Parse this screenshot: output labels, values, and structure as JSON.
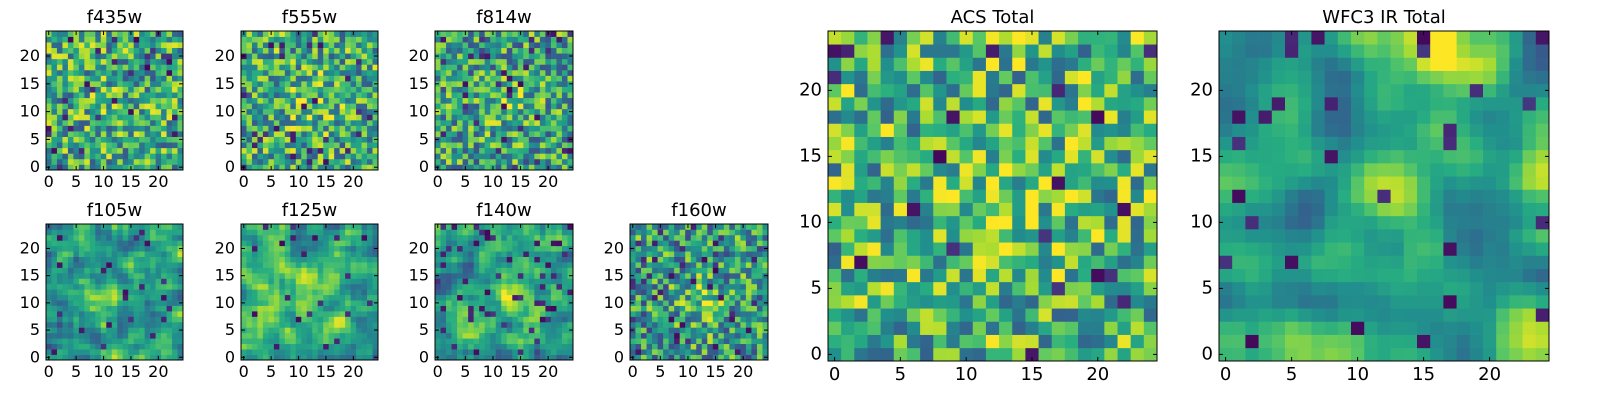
{
  "colormap": "viridis",
  "colors": {
    "low": "#440154",
    "mid_low": "#31688e",
    "mid": "#35b779",
    "high": "#fde725",
    "frame": "#000000"
  },
  "chart_data": [
    {
      "type": "heatmap",
      "title": "f435w",
      "grid_size": 25,
      "xlim": [
        0,
        24
      ],
      "ylim": [
        0,
        24
      ],
      "xticks": [
        0,
        5,
        10,
        15,
        20
      ],
      "yticks": [
        0,
        5,
        10,
        15,
        20
      ],
      "seed": 11,
      "smooth": 0,
      "base": 0.62,
      "blob": {
        "cx": 12,
        "cy": 12,
        "amp": 0.05
      },
      "dark_fraction": 0.05
    },
    {
      "type": "heatmap",
      "title": "f555w",
      "grid_size": 25,
      "xlim": [
        0,
        24
      ],
      "ylim": [
        0,
        24
      ],
      "xticks": [
        0,
        5,
        10,
        15,
        20
      ],
      "yticks": [
        0,
        5,
        10,
        15,
        20
      ],
      "seed": 23,
      "smooth": 0,
      "base": 0.62,
      "blob": {
        "cx": 12,
        "cy": 12,
        "amp": 0.15
      },
      "dark_fraction": 0.04
    },
    {
      "type": "heatmap",
      "title": "f814w",
      "grid_size": 25,
      "xlim": [
        0,
        24
      ],
      "ylim": [
        0,
        24
      ],
      "xticks": [
        0,
        5,
        10,
        15,
        20
      ],
      "yticks": [
        0,
        5,
        10,
        15,
        20
      ],
      "seed": 37,
      "smooth": 0,
      "base": 0.58,
      "blob": {
        "cx": 13,
        "cy": 11,
        "amp": 0.15
      },
      "dark_fraction": 0.06
    },
    {
      "type": "heatmap",
      "title": "f105w",
      "grid_size": 25,
      "xlim": [
        0,
        24
      ],
      "ylim": [
        0,
        24
      ],
      "xticks": [
        0,
        5,
        10,
        15,
        20
      ],
      "yticks": [
        0,
        5,
        10,
        15,
        20
      ],
      "seed": 41,
      "smooth": 1,
      "base": 0.58,
      "blob": {
        "cx": 11,
        "cy": 11,
        "amp": 0.22
      },
      "dark_fraction": 0.04
    },
    {
      "type": "heatmap",
      "title": "f125w",
      "grid_size": 25,
      "xlim": [
        0,
        24
      ],
      "ylim": [
        0,
        24
      ],
      "xticks": [
        0,
        5,
        10,
        15,
        20
      ],
      "yticks": [
        0,
        5,
        10,
        15,
        20
      ],
      "seed": 53,
      "smooth": 1,
      "base": 0.6,
      "blob": {
        "cx": 12,
        "cy": 12,
        "amp": 0.15
      },
      "dark_fraction": 0.04
    },
    {
      "type": "heatmap",
      "title": "f140w",
      "grid_size": 25,
      "xlim": [
        0,
        24
      ],
      "ylim": [
        0,
        24
      ],
      "xticks": [
        0,
        5,
        10,
        15,
        20
      ],
      "yticks": [
        0,
        5,
        10,
        15,
        20
      ],
      "seed": 67,
      "smooth": 1,
      "base": 0.56,
      "blob": {
        "cx": 14,
        "cy": 12,
        "amp": 0.22
      },
      "dark_fraction": 0.06
    },
    {
      "type": "heatmap",
      "title": "f160w",
      "grid_size": 25,
      "xlim": [
        0,
        24
      ],
      "ylim": [
        0,
        24
      ],
      "xticks": [
        0,
        5,
        10,
        15,
        20
      ],
      "yticks": [
        0,
        5,
        10,
        15,
        20
      ],
      "seed": 79,
      "smooth": 0,
      "base": 0.55,
      "blob": {
        "cx": 13,
        "cy": 10,
        "amp": 0.2
      },
      "dark_fraction": 0.07
    },
    {
      "type": "heatmap",
      "title": "ACS Total",
      "grid_size": 25,
      "xlim": [
        0,
        24
      ],
      "ylim": [
        0,
        24
      ],
      "xticks": [
        0,
        5,
        10,
        15,
        20
      ],
      "yticks": [
        0,
        5,
        10,
        15,
        20
      ],
      "seed": 91,
      "smooth": 0,
      "base": 0.66,
      "blob": {
        "cx": 12,
        "cy": 11,
        "amp": 0.18
      },
      "dark_fraction": 0.04
    },
    {
      "type": "heatmap",
      "title": "WFC3 IR Total",
      "grid_size": 25,
      "xlim": [
        0,
        24
      ],
      "ylim": [
        0,
        24
      ],
      "xticks": [
        0,
        5,
        10,
        15,
        20
      ],
      "yticks": [
        0,
        5,
        10,
        15,
        20
      ],
      "seed": 103,
      "smooth": 2,
      "base": 0.58,
      "blob": {
        "cx": 12,
        "cy": 12,
        "amp": 0.3
      },
      "blob2": {
        "cx": 17,
        "cy": 23,
        "amp": 0.28
      },
      "dark_fraction": 0.05
    }
  ]
}
